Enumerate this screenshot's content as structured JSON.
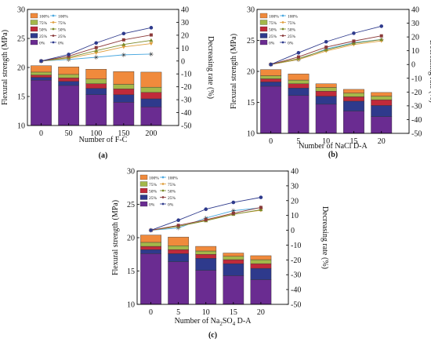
{
  "colors": {
    "stack": [
      "#6a2c91",
      "#2e3a8c",
      "#c02a3a",
      "#a3b84a",
      "#f08a3c",
      "#2aa3dc"
    ],
    "line": [
      "#5a2d82",
      "#2e3a8c",
      "#8b3a3a",
      "#7a8a2a",
      "#e0a040",
      "#4aa8e0"
    ],
    "axis": "#000000"
  },
  "legend_labels": [
    "100%",
    "75%",
    "50%",
    "25%",
    "0%"
  ],
  "chart_data": [
    {
      "type": "bar",
      "panel_label": "(a)",
      "xlabel": "Number of F-C",
      "ylabel": "Flexural strength (MPa)",
      "y2label": "Decreasing rate (%)",
      "categories": [
        "0",
        "50",
        "100",
        "150",
        "200"
      ],
      "ylim": [
        10,
        30
      ],
      "yticks": [
        10,
        15,
        20,
        25,
        30
      ],
      "y2lim": [
        -50,
        40
      ],
      "y2ticks": [
        -50,
        -40,
        -30,
        -20,
        -10,
        0,
        10,
        20,
        30,
        40
      ],
      "bar_series": [
        {
          "name": "0%",
          "values": [
            17.8,
            16.9,
            15.3,
            14.0,
            13.2
          ]
        },
        {
          "name": "25%",
          "values": [
            18.3,
            17.6,
            16.4,
            15.3,
            14.6
          ]
        },
        {
          "name": "50%",
          "values": [
            18.7,
            18.2,
            17.2,
            16.3,
            15.7
          ]
        },
        {
          "name": "75%",
          "values": [
            19.2,
            18.8,
            18.0,
            17.1,
            16.6
          ]
        },
        {
          "name": "100%",
          "values": [
            20.3,
            20.1,
            19.7,
            19.3,
            19.2
          ]
        }
      ],
      "line_series": [
        {
          "name": "100%",
          "values": [
            0,
            1.2,
            2.9,
            4.8,
            5.4
          ]
        },
        {
          "name": "75%",
          "values": [
            0,
            2.1,
            6.3,
            10.9,
            13.5
          ]
        },
        {
          "name": "50%",
          "values": [
            0,
            2.7,
            8.0,
            12.8,
            16.0
          ]
        },
        {
          "name": "25%",
          "values": [
            0,
            3.8,
            10.4,
            16.4,
            20.2
          ]
        },
        {
          "name": "0%",
          "values": [
            0,
            5.1,
            14.0,
            21.3,
            25.8
          ]
        }
      ]
    },
    {
      "type": "bar",
      "panel_label": "(b)",
      "xlabel": "Number of NaCl D-A",
      "ylabel": "Flexural strength (MPa)",
      "y2label": "Decreasing rate (%)",
      "categories": [
        "0",
        "5",
        "10",
        "15",
        "20"
      ],
      "ylim": [
        10,
        30
      ],
      "yticks": [
        10,
        15,
        20,
        25,
        30
      ],
      "y2lim": [
        -50,
        40
      ],
      "y2ticks": [
        -50,
        -40,
        -30,
        -20,
        -10,
        0,
        10,
        20,
        30,
        40
      ],
      "bar_series": [
        {
          "name": "0%",
          "values": [
            17.6,
            16.1,
            14.7,
            13.6,
            12.7
          ]
        },
        {
          "name": "25%",
          "values": [
            18.3,
            17.3,
            16.0,
            15.2,
            14.5
          ]
        },
        {
          "name": "50%",
          "values": [
            18.8,
            18.0,
            16.8,
            15.9,
            15.4
          ]
        },
        {
          "name": "75%",
          "values": [
            19.3,
            18.6,
            17.4,
            16.5,
            16.0
          ]
        },
        {
          "name": "100%",
          "values": [
            20.3,
            19.6,
            18.0,
            17.1,
            16.6
          ]
        }
      ],
      "line_series": [
        {
          "name": "100%",
          "values": [
            0,
            3.5,
            11.3,
            15.8,
            18.2
          ]
        },
        {
          "name": "75%",
          "values": [
            0,
            3.6,
            9.8,
            14.5,
            17.1
          ]
        },
        {
          "name": "50%",
          "values": [
            0,
            4.3,
            10.6,
            15.4,
            18.1
          ]
        },
        {
          "name": "25%",
          "values": [
            0,
            5.5,
            12.6,
            17.0,
            20.8
          ]
        },
        {
          "name": "0%",
          "values": [
            0,
            8.5,
            16.5,
            22.7,
            27.8
          ]
        }
      ]
    },
    {
      "type": "bar",
      "panel_label": "(c)",
      "xlabel_main": "Number of Na",
      "xlabel_sub1": "2",
      "xlabel_mid": "SO",
      "xlabel_sub2": "4",
      "xlabel_end": " D-A",
      "ylabel": "Flexural strength (MPa)",
      "y2label": "Decreasing rate (%)",
      "categories": [
        "0",
        "5",
        "10",
        "15",
        "20"
      ],
      "ylim": [
        10,
        30
      ],
      "yticks": [
        10,
        15,
        20,
        25,
        30
      ],
      "y2lim": [
        -50,
        40
      ],
      "y2ticks": [
        -50,
        -40,
        -30,
        -20,
        -10,
        0,
        10,
        20,
        30,
        40
      ],
      "bar_series": [
        {
          "name": "0%",
          "values": [
            17.6,
            16.4,
            15.1,
            14.3,
            13.7
          ]
        },
        {
          "name": "25%",
          "values": [
            18.2,
            17.6,
            16.9,
            16.1,
            15.4
          ]
        },
        {
          "name": "50%",
          "values": [
            18.7,
            18.2,
            17.5,
            16.7,
            16.1
          ]
        },
        {
          "name": "75%",
          "values": [
            19.3,
            18.8,
            18.0,
            17.2,
            16.7
          ]
        },
        {
          "name": "100%",
          "values": [
            20.4,
            20.1,
            18.7,
            17.7,
            17.3
          ]
        }
      ],
      "line_series": [
        {
          "name": "100%",
          "values": [
            0,
            1.5,
            8.3,
            13.2,
            15.2
          ]
        },
        {
          "name": "75%",
          "values": [
            0,
            2.6,
            6.7,
            10.9,
            13.5
          ]
        },
        {
          "name": "50%",
          "values": [
            0,
            2.7,
            6.4,
            10.7,
            13.9
          ]
        },
        {
          "name": "25%",
          "values": [
            0,
            3.3,
            7.1,
            11.5,
            15.4
          ]
        },
        {
          "name": "0%",
          "values": [
            0,
            6.8,
            14.2,
            18.8,
            22.2
          ]
        }
      ]
    }
  ]
}
